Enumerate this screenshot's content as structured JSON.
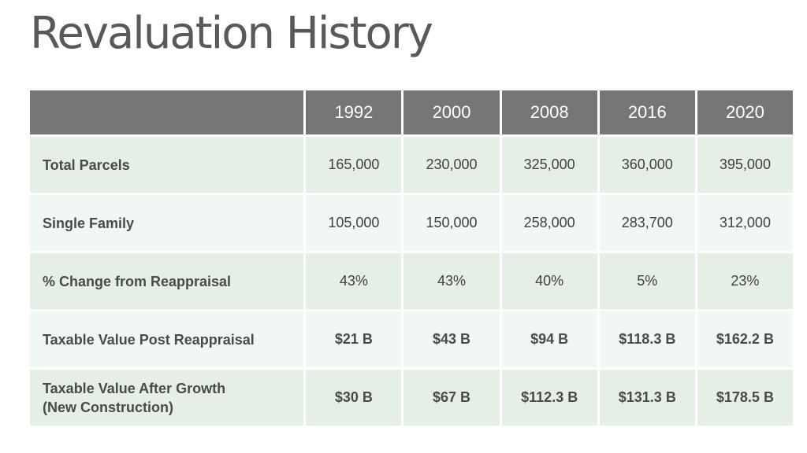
{
  "title": "Revaluation History",
  "table": {
    "header": [
      "",
      "1992",
      "2000",
      "2008",
      "2016",
      "2020"
    ],
    "rows": [
      {
        "label": "Total Parcels",
        "values": [
          "165,000",
          "230,000",
          "325,000",
          "360,000",
          "395,000"
        ]
      },
      {
        "label": "Single Family",
        "values": [
          "105,000",
          "150,000",
          "258,000",
          "283,700",
          "312,000"
        ]
      },
      {
        "label": "% Change from Reappraisal",
        "values": [
          "43%",
          "43%",
          "40%",
          "5%",
          "23%"
        ]
      },
      {
        "label": "Taxable Value Post Reappraisal",
        "values": [
          "$21 B",
          "$43 B",
          "$94 B",
          "$118.3 B",
          "$162.2 B"
        ]
      },
      {
        "label_line1": "Taxable Value After Growth",
        "label_line2": "(New Construction)",
        "values": [
          "$30 B",
          "$67 B",
          "$112.3 B",
          "$131.3 B",
          "$178.5 B"
        ]
      }
    ]
  },
  "colors": {
    "title": "#595959",
    "header_bg": "#767676",
    "row_bg_1": "#e4efe6",
    "row_bg_2": "#f1f7f2"
  }
}
